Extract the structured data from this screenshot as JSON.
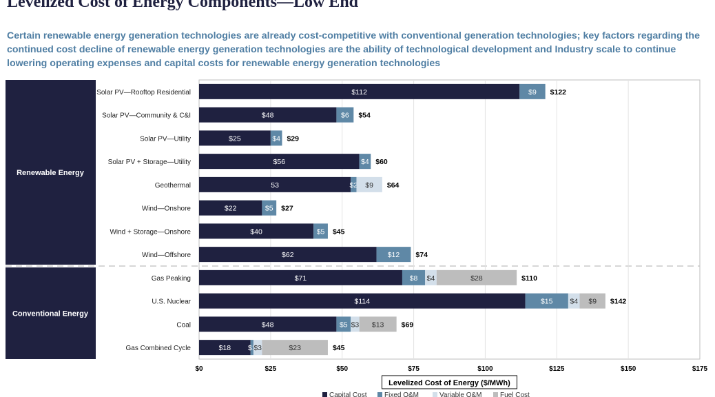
{
  "title": "Levelized Cost of Energy Components—Low End",
  "subtitle": "Certain renewable energy generation technologies are already cost-competitive with conventional generation technologies; key factors regarding the continued cost decline of renewable energy generation technologies are the ability of technological development and Industry scale to continue lowering operating expenses and capital costs for renewable energy generation technologies",
  "colors": {
    "capital": "#1f2140",
    "fixed_om": "#5f88a6",
    "variable_om": "#d3dfea",
    "fuel": "#bdbdbd",
    "group_box": "#1f2140",
    "subtitle": "#4f7ea3"
  },
  "chart_data": {
    "type": "bar",
    "orientation": "horizontal",
    "stacked": true,
    "xlabel": "Levelized Cost of Energy ($/MWh)",
    "xlim": [
      0,
      175
    ],
    "xticks": [
      0,
      25,
      50,
      75,
      100,
      125,
      150,
      175
    ],
    "xtick_labels": [
      "$0",
      "$25",
      "$50",
      "$75",
      "$100",
      "$125",
      "$150",
      "$175"
    ],
    "legend_position": "bottom",
    "groups": [
      {
        "name": "Renewable Energy",
        "count": 8
      },
      {
        "name": "Conventional Energy",
        "count": 4
      }
    ],
    "categories": [
      "Solar PV—Rooftop Residential",
      "Solar PV—Community & C&I",
      "Solar PV—Utility",
      "Solar PV + Storage—Utility",
      "Geothermal",
      "Wind—Onshore",
      "Wind + Storage—Onshore",
      "Wind—Offshore",
      "Gas Peaking",
      "U.S. Nuclear",
      "Coal",
      "Gas Combined Cycle"
    ],
    "series": [
      {
        "name": "Capital Cost",
        "color": "#1f2140",
        "values": [
          112,
          48,
          25,
          56,
          53,
          22,
          40,
          62,
          71,
          114,
          48,
          18
        ],
        "labels": [
          "$112",
          "$48",
          "$25",
          "$56",
          "53",
          "$22",
          "$40",
          "$62",
          "$71",
          "$114",
          "$48",
          "$18"
        ]
      },
      {
        "name": "Fixed O&M",
        "color": "#5f88a6",
        "values": [
          9,
          6,
          4,
          4,
          2,
          5,
          5,
          12,
          8,
          15,
          5,
          1
        ],
        "labels": [
          "$9",
          "$6",
          "$4",
          "$4",
          "$2",
          "$5",
          "$5",
          "$12",
          "$8",
          "$15",
          "$5",
          "$1"
        ]
      },
      {
        "name": "Variable O&M",
        "color": "#d3dfea",
        "values": [
          0,
          0,
          0,
          0,
          9,
          0,
          0,
          0,
          4,
          4,
          3,
          3
        ],
        "labels": [
          "",
          "",
          "",
          "",
          "$9",
          "",
          "",
          "",
          "$4",
          "$4",
          "$3",
          "$3"
        ]
      },
      {
        "name": "Fuel Cost",
        "color": "#bdbdbd",
        "values": [
          0,
          0,
          0,
          0,
          0,
          0,
          0,
          0,
          28,
          9,
          13,
          23
        ],
        "labels": [
          "",
          "",
          "",
          "",
          "",
          "",
          "",
          "",
          "$28",
          "$9",
          "$13",
          "$23"
        ]
      }
    ],
    "totals": [
      122,
      54,
      29,
      60,
      64,
      27,
      45,
      74,
      110,
      142,
      69,
      45
    ],
    "total_labels": [
      "$122",
      "$54",
      "$29",
      "$60",
      "$64",
      "$27",
      "$45",
      "$74",
      "$110",
      "$142",
      "$69",
      "$45"
    ]
  }
}
